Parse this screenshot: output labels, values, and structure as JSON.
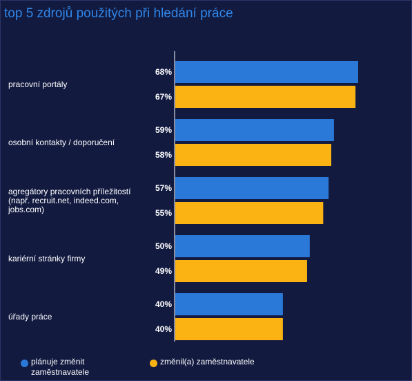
{
  "title": "top 5 zdrojů použitých při hledání práce",
  "colors": {
    "background": "#121a40",
    "title": "#2f86e8",
    "series1": "#2a78d8",
    "series2": "#fbb314",
    "axis": "#ffffff"
  },
  "chart_data": {
    "type": "bar",
    "orientation": "horizontal",
    "title": "top 5 zdrojů použitých při hledání práce",
    "categories": [
      "pracovní portály",
      "osobní kontakty / doporučení",
      "agregátory pracovních příležitostí\n(např. recruit.net, indeed.com,\njobs.com)",
      "kariérní stránky firmy",
      "úřady práce"
    ],
    "series": [
      {
        "name": "plánuje změnit\nzaměstnavatele",
        "values": [
          68,
          59,
          57,
          50,
          40
        ]
      },
      {
        "name": "změnil(a) zaměstnavatele",
        "values": [
          67,
          58,
          55,
          49,
          40
        ]
      }
    ],
    "value_suffix": "%",
    "xlim": [
      0,
      100
    ],
    "grid": false,
    "legend": "bottom-left"
  }
}
